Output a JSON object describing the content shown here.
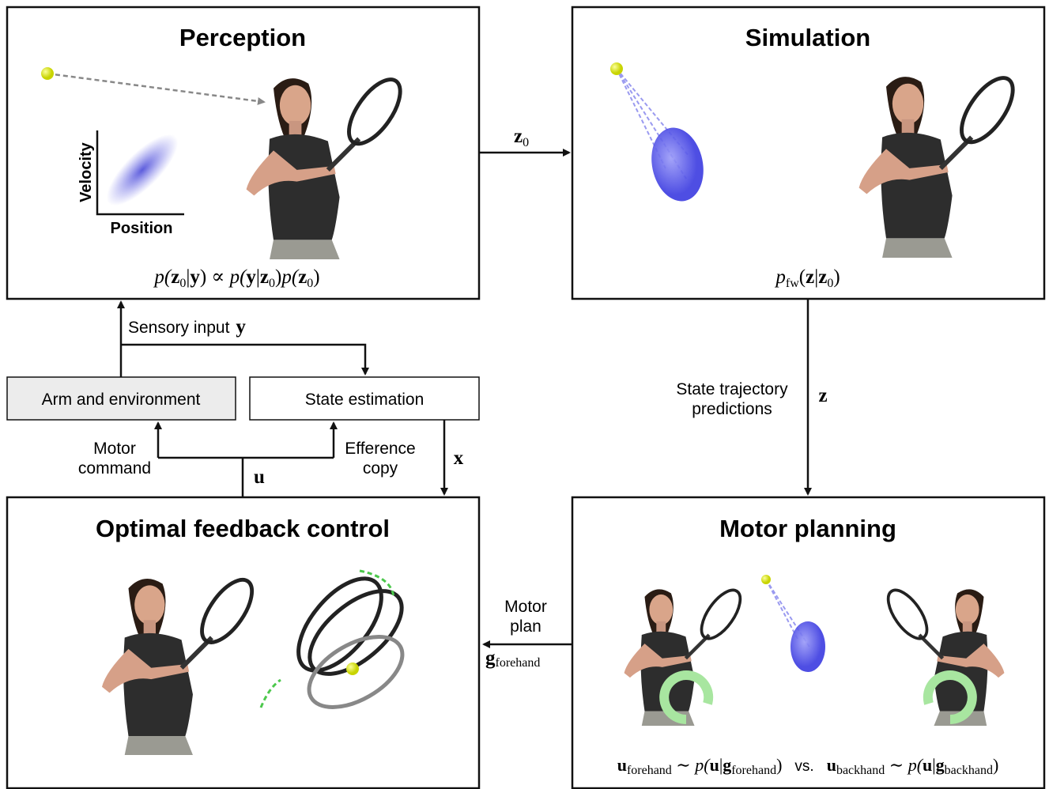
{
  "perception": {
    "title": "Perception",
    "axis_x": "Position",
    "axis_y": "Velocity",
    "formula": [
      "p(",
      "z",
      "0",
      "|",
      "y",
      ") ∝ ",
      "p(",
      "y",
      "|",
      "z",
      "0",
      ")",
      "p(",
      "z",
      "0",
      ")"
    ]
  },
  "simulation": {
    "title": "Simulation",
    "formula": [
      "p",
      "fw",
      "(",
      "z",
      "|",
      "z",
      "0",
      ")"
    ]
  },
  "boxes": {
    "arm": "Arm and environment",
    "state": "State estimation"
  },
  "edges": {
    "z0": [
      "z",
      "0"
    ],
    "sensory": [
      "Sensory input",
      "y"
    ],
    "motor_command": [
      "Motor",
      "command"
    ],
    "u": "u",
    "efference": [
      "Efference",
      "copy"
    ],
    "x": "x",
    "state_trajectory": [
      "State trajectory",
      "predictions"
    ],
    "z": "z",
    "motor_plan": [
      "Motor",
      "plan"
    ],
    "g": [
      "g",
      "forehand"
    ]
  },
  "ofc": {
    "title": "Optimal feedback control"
  },
  "planning": {
    "title": "Motor planning",
    "formula": [
      "u",
      "forehand",
      " ∼ ",
      "p(",
      "u",
      "|",
      "g",
      "forehand",
      ")",
      "vs.",
      "u",
      "backhand",
      " ∼ ",
      "p(",
      "u",
      "|",
      "g",
      "backhand",
      ")"
    ]
  }
}
